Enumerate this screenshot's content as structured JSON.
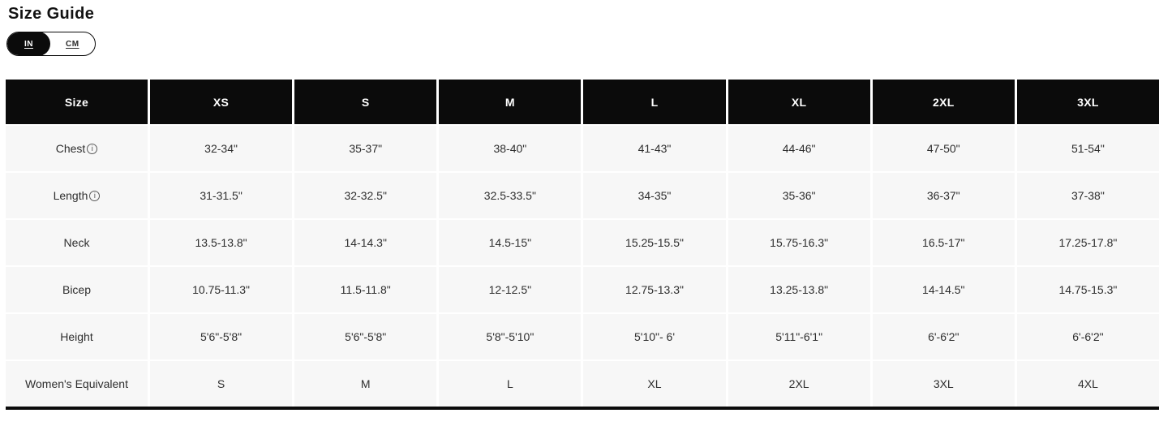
{
  "page": {
    "title": "Size Guide"
  },
  "unit_toggle": {
    "options": [
      {
        "label": "IN",
        "selected": true
      },
      {
        "label": "CM",
        "selected": false
      }
    ]
  },
  "icons": {
    "info": "i"
  },
  "colors": {
    "header_bg": "#0b0b0b",
    "row_bg": "#f7f7f7",
    "selected_toggle_bg": "#0b0b0b",
    "text": "#2e2e2e"
  },
  "table": {
    "columns": [
      "Size",
      "XS",
      "S",
      "M",
      "L",
      "XL",
      "2XL",
      "3XL"
    ],
    "rows": [
      {
        "label": "Chest",
        "has_info": true,
        "values": [
          "32-34\"",
          "35-37\"",
          "38-40\"",
          "41-43\"",
          "44-46\"",
          "47-50\"",
          "51-54\""
        ]
      },
      {
        "label": "Length",
        "has_info": true,
        "values": [
          "31-31.5\"",
          "32-32.5\"",
          "32.5-33.5\"",
          "34-35\"",
          "35-36\"",
          "36-37\"",
          "37-38\""
        ]
      },
      {
        "label": "Neck",
        "has_info": false,
        "values": [
          "13.5-13.8\"",
          "14-14.3\"",
          "14.5-15\"",
          "15.25-15.5\"",
          "15.75-16.3\"",
          "16.5-17\"",
          "17.25-17.8\""
        ]
      },
      {
        "label": "Bicep",
        "has_info": false,
        "values": [
          "10.75-11.3\"",
          "11.5-11.8\"",
          "12-12.5\"",
          "12.75-13.3\"",
          "13.25-13.8\"",
          "14-14.5\"",
          "14.75-15.3\""
        ]
      },
      {
        "label": "Height",
        "has_info": false,
        "values": [
          "5'6\"-5'8\"",
          "5'6\"-5'8\"",
          "5'8\"-5'10\"",
          "5'10\"- 6'",
          "5'11\"-6'1\"",
          "6'-6'2\"",
          "6'-6'2\""
        ]
      },
      {
        "label": "Women's Equivalent",
        "has_info": false,
        "values": [
          "S",
          "M",
          "L",
          "XL",
          "2XL",
          "3XL",
          "4XL"
        ]
      }
    ]
  }
}
